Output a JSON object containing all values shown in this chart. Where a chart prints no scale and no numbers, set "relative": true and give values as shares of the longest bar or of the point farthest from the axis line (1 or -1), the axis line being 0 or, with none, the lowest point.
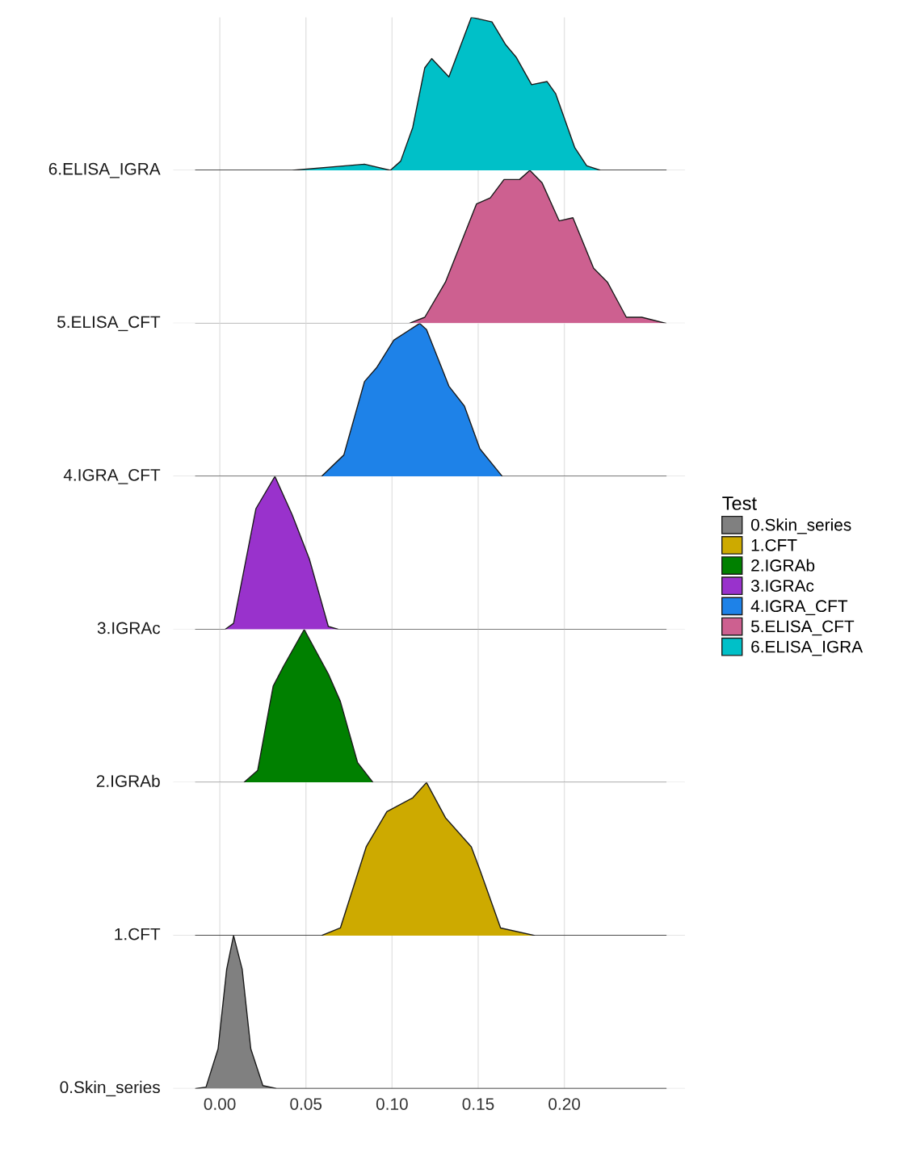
{
  "chart_data": [
    {
      "type": "area",
      "ylabel": "6.ELISA_IGRA",
      "relative": true,
      "legend": "right",
      "legend_title": "Test",
      "grid": "x",
      "tick_labels": false,
      "xlim": [
        -0.027,
        0.27
      ],
      "xticks": [
        0,
        0.05,
        0.1,
        0.15,
        0.2
      ],
      "series": [
        {
          "name": "6.ELISA_IGRA",
          "color": "#00c0c8",
          "x": [
            -0.014,
            0.042,
            0.084,
            0.099,
            0.105,
            0.112,
            0.119,
            0.123,
            0.133,
            0.14,
            0.146,
            0.158,
            0.166,
            0.172,
            0.181,
            0.19,
            0.195,
            0.206,
            0.213,
            0.221,
            0.259
          ],
          "values": [
            0,
            0,
            0.04,
            0,
            0.06,
            0.28,
            0.67,
            0.73,
            0.61,
            0.82,
            1.0,
            0.97,
            0.82,
            0.74,
            0.56,
            0.58,
            0.5,
            0.15,
            0.03,
            0,
            0
          ]
        }
      ]
    },
    {
      "type": "area",
      "ylabel": "5.ELISA_CFT",
      "relative": true,
      "legend": "right",
      "grid": "x",
      "tick_labels": false,
      "xlim": [
        -0.027,
        0.27
      ],
      "xticks": [
        0,
        0.05,
        0.1,
        0.15,
        0.2
      ],
      "series": [
        {
          "name": "5.ELISA_CFT",
          "color": "#cd6090",
          "x": [
            -0.014,
            0.11,
            0.119,
            0.131,
            0.149,
            0.157,
            0.165,
            0.174,
            0.18,
            0.187,
            0.197,
            0.205,
            0.217,
            0.225,
            0.236,
            0.245,
            0.259
          ],
          "values": [
            0,
            0,
            0.04,
            0.27,
            0.78,
            0.82,
            0.94,
            0.94,
            1.0,
            0.92,
            0.67,
            0.69,
            0.36,
            0.27,
            0.04,
            0.04,
            0
          ]
        }
      ]
    },
    {
      "type": "area",
      "ylabel": "4.IGRA_CFT",
      "relative": true,
      "legend": "right",
      "grid": "x",
      "tick_labels": false,
      "xlim": [
        -0.027,
        0.27
      ],
      "xticks": [
        0,
        0.05,
        0.1,
        0.15,
        0.2
      ],
      "series": [
        {
          "name": "4.IGRA_CFT",
          "color": "#1e82e8",
          "x": [
            -0.014,
            0.059,
            0.072,
            0.084,
            0.091,
            0.101,
            0.116,
            0.12,
            0.133,
            0.142,
            0.151,
            0.164,
            0.259
          ],
          "values": [
            0,
            0,
            0.14,
            0.62,
            0.71,
            0.89,
            1.0,
            0.96,
            0.59,
            0.46,
            0.18,
            0,
            0
          ]
        }
      ]
    },
    {
      "type": "area",
      "ylabel": "3.IGRAc",
      "relative": true,
      "legend": "right",
      "grid": "x",
      "tick_labels": false,
      "xlim": [
        -0.027,
        0.27
      ],
      "xticks": [
        0,
        0.05,
        0.1,
        0.15,
        0.2
      ],
      "series": [
        {
          "name": "3.IGRAc",
          "color": "#9932cc",
          "x": [
            -0.014,
            0.003,
            0.008,
            0.021,
            0.032,
            0.042,
            0.052,
            0.063,
            0.069,
            0.259
          ],
          "values": [
            0,
            0,
            0.04,
            0.79,
            1.0,
            0.75,
            0.46,
            0.02,
            0,
            0
          ]
        }
      ]
    },
    {
      "type": "area",
      "ylabel": "2.IGRAb",
      "relative": true,
      "legend": "right",
      "grid": "x",
      "tick_labels": false,
      "xlim": [
        -0.027,
        0.27
      ],
      "xticks": [
        0,
        0.05,
        0.1,
        0.15,
        0.2
      ],
      "series": [
        {
          "name": "2.IGRAb",
          "color": "#008000",
          "x": [
            -0.014,
            0.014,
            0.022,
            0.031,
            0.037,
            0.049,
            0.063,
            0.07,
            0.08,
            0.089,
            0.259
          ],
          "values": [
            0,
            0,
            0.08,
            0.63,
            0.76,
            1.0,
            0.71,
            0.53,
            0.13,
            0,
            0
          ]
        }
      ]
    },
    {
      "type": "area",
      "ylabel": "1.CFT",
      "relative": true,
      "legend": "right",
      "grid": "x",
      "tick_labels": false,
      "xlim": [
        -0.027,
        0.27
      ],
      "xticks": [
        0,
        0.05,
        0.1,
        0.15,
        0.2
      ],
      "series": [
        {
          "name": "1.CFT",
          "color": "#cdaa00",
          "x": [
            -0.014,
            0.059,
            0.07,
            0.085,
            0.097,
            0.112,
            0.12,
            0.131,
            0.146,
            0.151,
            0.163,
            0.183,
            0.259
          ],
          "values": [
            0,
            0,
            0.05,
            0.58,
            0.81,
            0.9,
            1.0,
            0.77,
            0.58,
            0.43,
            0.05,
            0,
            0
          ]
        }
      ]
    },
    {
      "type": "area",
      "ylabel": "0.Skin_series",
      "relative": true,
      "legend": "right",
      "grid": "x",
      "tick_labels": "x",
      "xlim": [
        -0.027,
        0.27
      ],
      "xticks": [
        {
          "value": 0,
          "label": "0.00"
        },
        {
          "value": 0.05,
          "label": "0.05"
        },
        {
          "value": 0.1,
          "label": "0.10"
        },
        {
          "value": 0.15,
          "label": "0.15"
        },
        {
          "value": 0.2,
          "label": "0.20"
        }
      ],
      "series": [
        {
          "name": "0.Skin_series",
          "color": "#808080",
          "x": [
            -0.014,
            -0.008,
            -0.001,
            0.004,
            0.008,
            0.013,
            0.018,
            0.025,
            0.033,
            0.259
          ],
          "values": [
            0,
            0.01,
            0.26,
            0.78,
            1.0,
            0.78,
            0.26,
            0.02,
            0,
            0
          ]
        }
      ]
    }
  ]
}
